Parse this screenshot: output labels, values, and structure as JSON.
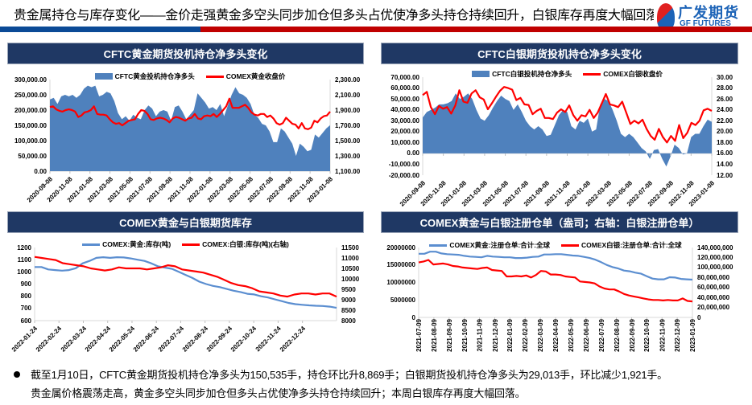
{
  "header": {
    "title": "贵金属持仓与库存变化——金价走强黄金多空头同步加仓但多头占优使净多头持仓持续回升，白银库存再度大幅回落",
    "logo_cn": "广发期货",
    "logo_en": "GF FUTURES"
  },
  "colors": {
    "area": "#4f81bd",
    "red": "#ff0000",
    "blue_line": "#5b8ed0",
    "header_bg": "#1f3864"
  },
  "notes": [
    "截至1月10日，CFTC黄金期货投机持仓净多头为150,535手，持仓环比升8,869手；白银期货投机持仓净多头为29,013手，环比减少1,921手。",
    "贵金属价格震荡走高，黄金多空头同步加仓但多头占优使净多头持仓持续回升；本周白银库存再度大幅回落。"
  ],
  "chart_data": [
    {
      "type": "area",
      "title": "CFTC黄金期货投机持仓净多头变化",
      "x_labels": [
        "2020-09-08",
        "2020-11-08",
        "2021-01-08",
        "2021-03-08",
        "2021-05-08",
        "2021-07-08",
        "2021-09-08",
        "2021-11-08",
        "2022-01-08",
        "2022-03-08",
        "2022-05-08",
        "2022-07-08",
        "2022-09-08",
        "2022-11-08",
        "2023-01-08"
      ],
      "left_axis": {
        "min": 0,
        "max": 300000,
        "ticks": [
          "0.00",
          "50,000.00",
          "100,000.00",
          "150,000.00",
          "200,000.00",
          "250,000.00",
          "300,000.00"
        ]
      },
      "right_axis": {
        "min": 1100,
        "max": 2300,
        "ticks": [
          "1,100.00",
          "1,300.00",
          "1,500.00",
          "1,700.00",
          "1,900.00",
          "2,100.00",
          "2,300.00"
        ]
      },
      "series": [
        {
          "name": "CFTC黄金投机持仓净多头",
          "axis": "left",
          "kind": "area",
          "color": "#4f81bd",
          "values": [
            235000,
            240000,
            220000,
            245000,
            250000,
            245000,
            250000,
            240000,
            250000,
            270000,
            280000,
            275000,
            280000,
            245000,
            250000,
            260000,
            255000,
            230000,
            190000,
            170000,
            180000,
            165000,
            185000,
            175000,
            170000,
            200000,
            215000,
            205000,
            180000,
            195000,
            200000,
            195000,
            165000,
            210000,
            215000,
            195000,
            170000,
            185000,
            200000,
            255000,
            240000,
            225000,
            205000,
            210000,
            200000,
            220000,
            180000,
            215000,
            250000,
            275000,
            255000,
            250000,
            240000,
            220000,
            185000,
            175000,
            155000,
            150000,
            130000,
            95000,
            95000,
            140000,
            130000,
            110000,
            90000,
            50000,
            90000,
            80000,
            65000,
            70000,
            120000,
            110000,
            125000,
            140000,
            150535
          ]
        },
        {
          "name": "COMEX黄金收盘价",
          "axis": "right",
          "kind": "line",
          "color": "#ff0000",
          "values": [
            1940,
            1950,
            1910,
            1890,
            1880,
            1900,
            1910,
            1900,
            1880,
            1810,
            1830,
            1870,
            1880,
            1900,
            1950,
            1850,
            1840,
            1840,
            1830,
            1780,
            1740,
            1720,
            1730,
            1700,
            1730,
            1760,
            1770,
            1780,
            1850,
            1900,
            1890,
            1850,
            1780,
            1770,
            1790,
            1800,
            1790,
            1770,
            1740,
            1790,
            1810,
            1800,
            1780,
            1760,
            1790,
            1800,
            1850,
            1790,
            1780,
            1820,
            1830,
            1820,
            1850,
            1810,
            1850,
            1900,
            1950,
            2050,
            1930,
            1930,
            1930,
            1950,
            1970,
            1930,
            1870,
            1840,
            1830,
            1850,
            1850,
            1810,
            1830,
            1790,
            1730,
            1710,
            1730,
            1800,
            1760,
            1720,
            1710,
            1660,
            1730,
            1660,
            1650,
            1670,
            1760,
            1740,
            1790,
            1820,
            1830,
            1880
          ]
        }
      ]
    },
    {
      "type": "area",
      "title": "CFTC白银期货投机持仓净多头变化",
      "x_labels": [
        "2020-09-08",
        "2020-11-08",
        "2021-01-08",
        "2021-03-08",
        "2021-05-08",
        "2021-07-08",
        "2021-09-08",
        "2021-11-08",
        "2022-01-08",
        "2022-03-08",
        "2022-05-08",
        "2022-07-08",
        "2022-09-08",
        "2022-11-08",
        "2023-01-08"
      ],
      "left_axis": {
        "min": -20000,
        "max": 70000,
        "ticks": [
          "-20,000.00",
          "-10,000.00",
          "0.00",
          "10,000.00",
          "20,000.00",
          "30,000.00",
          "40,000.00",
          "50,000.00",
          "60,000.00",
          "70,000.00"
        ]
      },
      "right_axis": {
        "min": 12,
        "max": 30,
        "ticks": [
          "12.00",
          "14.00",
          "16.00",
          "18.00",
          "20.00",
          "22.00",
          "24.00",
          "26.00",
          "28.00",
          "30.00"
        ]
      },
      "series": [
        {
          "name": "CFTC白银投机持仓净多头",
          "axis": "left",
          "kind": "area",
          "color": "#4f81bd",
          "values": [
            33000,
            38000,
            40000,
            42000,
            45000,
            45000,
            46000,
            48000,
            55000,
            50000,
            52000,
            55000,
            50000,
            40000,
            32000,
            30000,
            35000,
            42000,
            48000,
            53000,
            50000,
            48000,
            40000,
            45000,
            38000,
            30000,
            25000,
            22000,
            25000,
            22000,
            16000,
            17000,
            26000,
            35000,
            40000,
            38000,
            25000,
            22000,
            30000,
            28000,
            32000,
            20000,
            22000,
            45000,
            50000,
            48000,
            40000,
            30000,
            18000,
            15000,
            18000,
            15000,
            10000,
            5000,
            2000,
            -5000,
            3000,
            4000,
            -5000,
            -12000,
            -3000,
            8000,
            5000,
            -1000,
            0,
            15000,
            18000,
            18000,
            25000,
            31000,
            29013
          ]
        },
        {
          "name": "COMEX白银收盘价",
          "axis": "right",
          "kind": "line",
          "color": "#ff0000",
          "values": [
            26.7,
            27.3,
            24.5,
            23.2,
            24.7,
            24.2,
            24.5,
            23.3,
            24.8,
            27.6,
            25.5,
            25.3,
            27,
            27.6,
            26.3,
            25.9,
            24.1,
            25.2,
            26.4,
            27.5,
            28.2,
            28.0,
            27.7,
            25.8,
            26.2,
            25,
            24.9,
            23.2,
            23.8,
            24.2,
            22.5,
            22.5,
            22.3,
            23.5,
            24.1,
            23.6,
            24.8,
            23,
            22,
            23,
            22.8,
            24,
            22.5,
            23.5,
            25.2,
            26.9,
            25,
            24.8,
            24.5,
            25.5,
            23.5,
            21.4,
            22,
            21.5,
            22.2,
            20.5,
            19.2,
            18.5,
            20.5,
            19,
            18,
            19.2,
            18.3,
            21.2,
            18.8,
            19.8,
            21.6,
            21.2,
            22,
            23.9,
            24.2,
            23.8
          ]
        }
      ]
    },
    {
      "type": "line",
      "title": "COMEX黄金与白银期货库存",
      "x_labels": [
        "2022-01-24",
        "2022-02-24",
        "2022-03-24",
        "2022-04-24",
        "2022-05-24",
        "2022-06-24",
        "2022-07-24",
        "2022-08-24",
        "2022-09-24",
        "2022-10-24",
        "2022-11-24",
        "2022-12-24"
      ],
      "x_label_span": 12.4,
      "left_axis": {
        "min": 600,
        "max": 1200,
        "ticks": [
          "600",
          "700",
          "800",
          "900",
          "1000",
          "1100",
          "1200"
        ]
      },
      "right_axis": {
        "min": 8000,
        "max": 11500,
        "ticks": [
          "8000",
          "8500",
          "9000",
          "9500",
          "10000",
          "10500",
          "11000",
          "11500"
        ]
      },
      "series": [
        {
          "name": "COMEX:黄金:库存(吨)",
          "axis": "left",
          "kind": "line",
          "color": "#5b8ed0",
          "values": [
            1040,
            1040,
            1020,
            1015,
            1010,
            1015,
            1030,
            1070,
            1090,
            1115,
            1120,
            1115,
            1120,
            1118,
            1110,
            1100,
            1090,
            1070,
            1045,
            1035,
            1025,
            1000,
            975,
            950,
            920,
            900,
            885,
            875,
            860,
            845,
            835,
            820,
            815,
            800,
            790,
            775,
            760,
            745,
            735,
            730,
            725,
            722,
            720,
            715,
            705
          ]
        },
        {
          "name": "COMEX:白银:库存(吨)(右轴)",
          "axis": "right",
          "kind": "line",
          "color": "#ff0000",
          "values": [
            11050,
            11000,
            10950,
            10900,
            10750,
            10700,
            10650,
            10600,
            10500,
            10450,
            10400,
            10450,
            10550,
            10500,
            10500,
            10500,
            10450,
            10500,
            10550,
            10650,
            10600,
            10450,
            10400,
            10350,
            10300,
            10200,
            10100,
            9950,
            9800,
            9700,
            9650,
            9550,
            9400,
            9350,
            9300,
            9200,
            9150,
            9250,
            9300,
            9300,
            9250,
            9300,
            9300,
            9150
          ]
        }
      ]
    },
    {
      "type": "line",
      "title": "COMEX黄金与白银注册仓单（盎司；右轴：白银注册仓单）",
      "x_labels": [
        "2021-07-09",
        "2021-08-09",
        "2021-09-09",
        "2021-10-09",
        "2021-11-09",
        "2021-12-09",
        "2022-01-09",
        "2022-02-09",
        "2022-03-09",
        "2022-04-09",
        "2022-05-09",
        "2022-06-09",
        "2022-07-09",
        "2022-08-09",
        "2022-09-09",
        "2022-10-09",
        "2022-11-09",
        "2022-12-09",
        "2023-01-09"
      ],
      "left_axis": {
        "min": 0,
        "max": 20000000,
        "ticks": [
          "0",
          "5000000",
          "10000000",
          "15000000",
          "20000000"
        ]
      },
      "right_axis": {
        "min": 0,
        "max": 140000000,
        "ticks": [
          "0",
          "20,000,000",
          "40,000,000",
          "60,000,000",
          "80,000,000",
          "100,000,000",
          "120,000,000",
          "140,000,000"
        ]
      },
      "series": [
        {
          "name": "COMEX黄金:注册仓单:合计:全球",
          "axis": "left",
          "kind": "line",
          "color": "#5b8ed0",
          "values": [
            18200000,
            18200000,
            18800000,
            18800000,
            18300000,
            18100000,
            18000000,
            17900000,
            17600000,
            17400000,
            17300000,
            17200000,
            17600000,
            17400000,
            17300000,
            17200000,
            17200000,
            17000000,
            17000000,
            17100000,
            17300000,
            17400000,
            18000000,
            18000000,
            18100000,
            18100000,
            17900000,
            17700000,
            17600000,
            17300000,
            17000000,
            16500000,
            15800000,
            15000000,
            14400000,
            14000000,
            13400000,
            13200000,
            12800000,
            12500000,
            11800000,
            11100000,
            10900000,
            10900000,
            11500000,
            11400000,
            11000000,
            10900000,
            10800000
          ]
        },
        {
          "name": "COMEX白银:注册仓单:合计:全球",
          "axis": "right",
          "kind": "line",
          "color": "#ff0000",
          "values": [
            110000000,
            112000000,
            115000000,
            106000000,
            107000000,
            108000000,
            106000000,
            103000000,
            102000000,
            100000000,
            99000000,
            98000000,
            97000000,
            99000000,
            100000000,
            95000000,
            94000000,
            93000000,
            82000000,
            82000000,
            83000000,
            82000000,
            84000000,
            80000000,
            85000000,
            93000000,
            92000000,
            86000000,
            86000000,
            85000000,
            82000000,
            81000000,
            80000000,
            72000000,
            71000000,
            70000000,
            68000000,
            62000000,
            58000000,
            56000000,
            56000000,
            52000000,
            47000000,
            44000000,
            42000000,
            40000000,
            38000000,
            36000000,
            35000000,
            35000000,
            34000000,
            35000000,
            34000000,
            34000000,
            38000000,
            33000000,
            32000000
          ]
        }
      ]
    }
  ]
}
